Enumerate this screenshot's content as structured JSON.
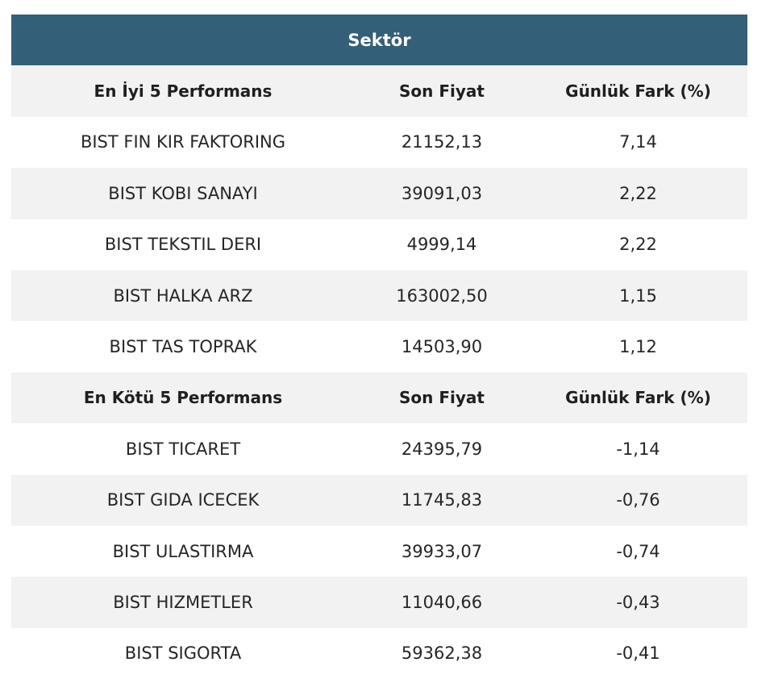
{
  "table": {
    "title": "Sektör",
    "best": {
      "headers": [
        "En İyi 5 Performans",
        "Son Fiyat",
        "Günlük Fark (%)"
      ],
      "rows": [
        [
          "BIST FIN KIR FAKTORING",
          "21152,13",
          "7,14"
        ],
        [
          "BIST KOBI SANAYI",
          "39091,03",
          "2,22"
        ],
        [
          "BIST TEKSTIL DERI",
          "4999,14",
          "2,22"
        ],
        [
          "BIST HALKA ARZ",
          "163002,50",
          "1,15"
        ],
        [
          "BIST TAS TOPRAK",
          "14503,90",
          "1,12"
        ]
      ]
    },
    "worst": {
      "headers": [
        "En Kötü 5 Performans",
        "Son Fiyat",
        "Günlük Fark (%)"
      ],
      "rows": [
        [
          "BIST TICARET",
          "24395,79",
          "-1,14"
        ],
        [
          "BIST GIDA ICECEK",
          "11745,83",
          "-0,76"
        ],
        [
          "BIST ULASTIRMA",
          "39933,07",
          "-0,74"
        ],
        [
          "BIST HIZMETLER",
          "11040,66",
          "-0,43"
        ],
        [
          "BIST SIGORTA",
          "59362,38",
          "-0,41"
        ]
      ]
    },
    "colors": {
      "header_bg": "#345f78",
      "row_shade": "#f2f2f2"
    }
  }
}
